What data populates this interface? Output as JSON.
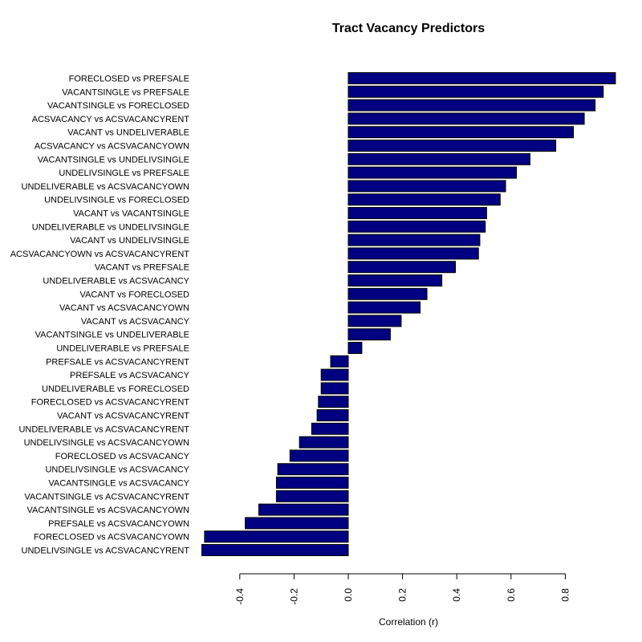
{
  "chart_data": {
    "type": "bar",
    "orientation": "horizontal",
    "title": "Tract Vacancy Predictors",
    "xlabel": "Correlation (r)",
    "ylabel": "",
    "xlim": [
      -0.55,
      0.98
    ],
    "x_ticks": [
      "-0.4",
      "-0.2",
      "0.0",
      "0.2",
      "0.4",
      "0.6",
      "0.8"
    ],
    "bar_color": "#000080",
    "bar_border_color": "#000000",
    "grid": false,
    "categories": [
      "FORECLOSED vs PREFSALE",
      "VACANTSINGLE vs PREFSALE",
      "VACANTSINGLE vs FORECLOSED",
      "ACSVACANCY vs ACSVACANCYRENT",
      "VACANT vs UNDELIVERABLE",
      "ACSVACANCY vs ACSVACANCYOWN",
      "VACANTSINGLE vs UNDELIVSINGLE",
      "UNDELIVSINGLE vs PREFSALE",
      "UNDELIVERABLE vs ACSVACANCYOWN",
      "UNDELIVSINGLE vs FORECLOSED",
      "VACANT vs VACANTSINGLE",
      "UNDELIVERABLE vs UNDELIVSINGLE",
      "VACANT vs UNDELIVSINGLE",
      "ACSVACANCYOWN vs ACSVACANCYRENT",
      "VACANT vs PREFSALE",
      "UNDELIVERABLE vs ACSVACANCY",
      "VACANT vs FORECLOSED",
      "VACANT vs ACSVACANCYOWN",
      "VACANT vs ACSVACANCY",
      "VACANTSINGLE vs UNDELIVERABLE",
      "UNDELIVERABLE vs PREFSALE",
      "PREFSALE vs ACSVACANCYRENT",
      "PREFSALE vs ACSVACANCY",
      "UNDELIVERABLE vs FORECLOSED",
      "FORECLOSED vs ACSVACANCYRENT",
      "VACANT vs ACSVACANCYRENT",
      "UNDELIVERABLE vs ACSVACANCYRENT",
      "UNDELIVSINGLE vs ACSVACANCYOWN",
      "FORECLOSED vs ACSVACANCY",
      "UNDELIVSINGLE vs ACSVACANCY",
      "VACANTSINGLE vs ACSVACANCY",
      "VACANTSINGLE vs ACSVACANCYRENT",
      "VACANTSINGLE vs ACSVACANCYOWN",
      "PREFSALE vs ACSVACANCYOWN",
      "FORECLOSED vs ACSVACANCYOWN",
      "UNDELIVSINGLE vs ACSVACANCYRENT"
    ],
    "values": [
      0.985,
      0.94,
      0.91,
      0.87,
      0.83,
      0.765,
      0.67,
      0.62,
      0.58,
      0.56,
      0.51,
      0.505,
      0.485,
      0.48,
      0.395,
      0.345,
      0.29,
      0.265,
      0.195,
      0.155,
      0.05,
      -0.065,
      -0.1,
      -0.1,
      -0.11,
      -0.115,
      -0.135,
      -0.18,
      -0.215,
      -0.26,
      -0.265,
      -0.265,
      -0.33,
      -0.38,
      -0.53,
      -0.54
    ]
  }
}
